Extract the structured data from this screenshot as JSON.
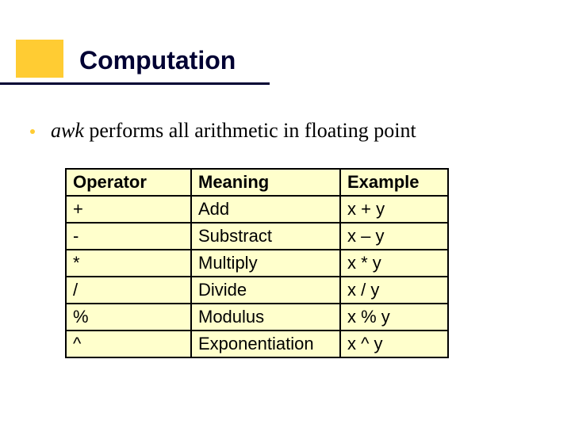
{
  "title": "Computation",
  "accent_color": "#ffcc33",
  "title_color": "#000033",
  "bullet": {
    "italic_word": "awk",
    "rest": " performs all arithmetic in floating point"
  },
  "table": {
    "background_color": "#ffffcc",
    "border_color": "#000000",
    "header_fontweight": "bold",
    "cell_fontsize": 22,
    "columns": [
      "Operator",
      "Meaning",
      "Example"
    ],
    "rows": [
      [
        "+",
        "Add",
        "x + y"
      ],
      [
        "-",
        "Substract",
        "x – y"
      ],
      [
        "*",
        "Multiply",
        "x * y"
      ],
      [
        "/",
        "Divide",
        "x / y"
      ],
      [
        "%",
        "Modulus",
        "x % y"
      ],
      [
        "^",
        "Exponentiation",
        "x ^ y"
      ]
    ]
  }
}
